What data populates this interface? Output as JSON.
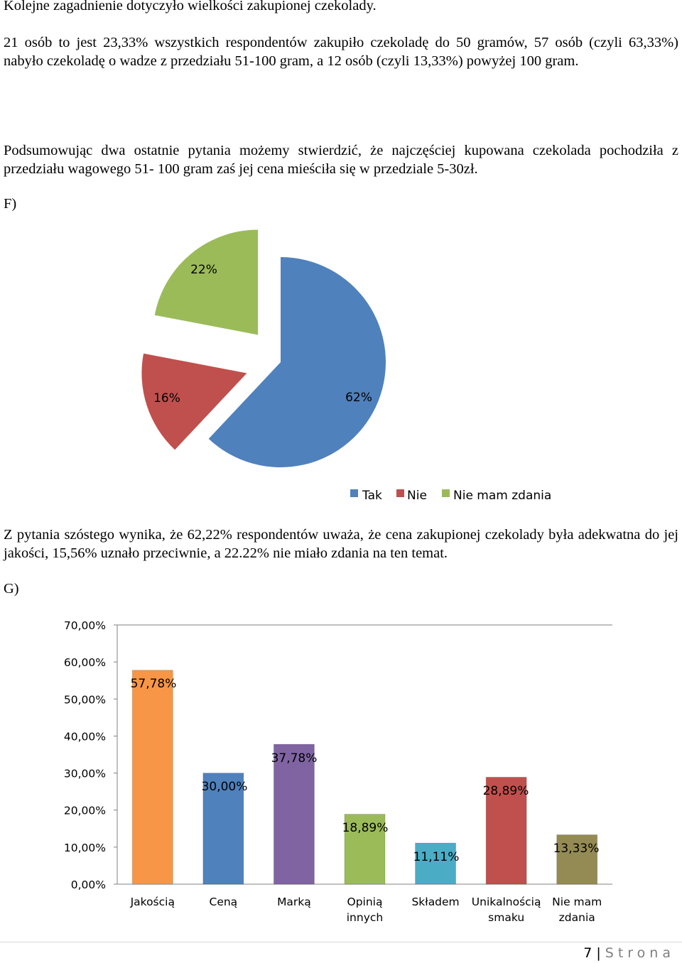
{
  "paragraphs": {
    "p1": "Kolejne zagadnienie dotyczyło wielkości zakupionej czekolady.",
    "p2": "21 osób to jest 23,33% wszystkich respondentów zakupiło czekoladę do 50 gramów, 57 osób (czyli 63,33%) nabyło czekoladę o wadze z przedziału 51-100 gram, a 12 osób (czyli 13,33%) powyżej 100 gram.",
    "p3": "Podsumowując dwa ostatnie pytania możemy stwierdzić, że najczęściej kupowana czekolada pochodziła z przedziału wagowego 51- 100 gram zaś jej cena mieściła się w przedziale 5-30zł.",
    "p4": " Z pytania szóstego wynika, że 62,22% respondentów uważa, że cena zakupionej czekolady była adekwatna do jej jakości, 15,56% uznało przeciwnie, a 22.22% nie miało zdania na ten temat."
  },
  "section_labels": {
    "f": "F)",
    "g": "G)"
  },
  "chart_data": [
    {
      "type": "pie",
      "exploded": true,
      "slices": [
        {
          "name": "Tak",
          "value": 62,
          "label": "62%",
          "color": "#4f81bd"
        },
        {
          "name": "Nie",
          "value": 16,
          "label": "16%",
          "color": "#c0504d"
        },
        {
          "name": "Nie mam zdania",
          "value": 22,
          "label": "22%",
          "color": "#9bbb59"
        }
      ],
      "legend_position": "bottom-right"
    },
    {
      "type": "bar",
      "categories": [
        [
          "Jakością"
        ],
        [
          "Ceną"
        ],
        [
          "Marką"
        ],
        [
          "Opinią",
          "innych"
        ],
        [
          "Składem"
        ],
        [
          "Unikalnością",
          "smaku"
        ],
        [
          "Nie mam",
          "zdania"
        ]
      ],
      "values": [
        57.78,
        30.0,
        37.78,
        18.89,
        11.11,
        28.89,
        13.33
      ],
      "value_labels": [
        "57,78%",
        "30,00%",
        "37,78%",
        "18,89%",
        "11,11%",
        "28,89%",
        "13,33%"
      ],
      "colors": [
        "#f79646",
        "#4f81bd",
        "#8064a2",
        "#9bbb59",
        "#4bacc6",
        "#c0504d",
        "#948a54"
      ],
      "yticks": [
        "0,00%",
        "10,00%",
        "20,00%",
        "30,00%",
        "40,00%",
        "50,00%",
        "60,00%",
        "70,00%"
      ],
      "ylim": [
        0,
        70
      ],
      "grid": false
    }
  ],
  "footer": {
    "page": "7",
    "separator": "|",
    "word": "Strona"
  }
}
